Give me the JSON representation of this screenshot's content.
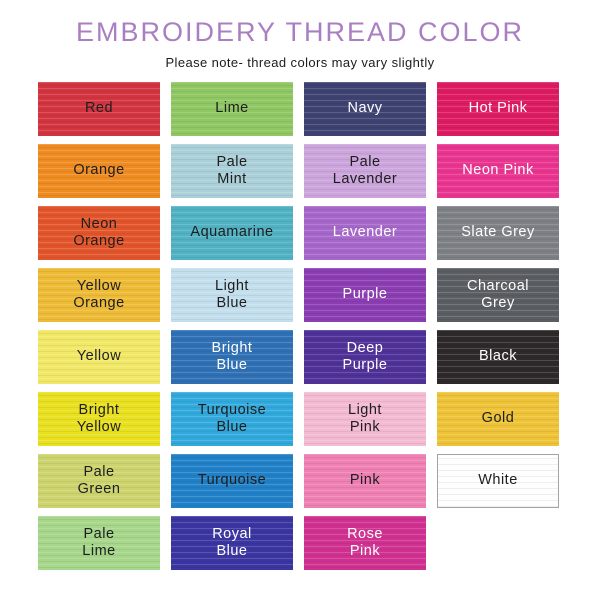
{
  "chart_data": {
    "type": "table",
    "title": "EMBROIDERY THREAD COLOR",
    "note": "Please note- thread colors may vary slightly",
    "title_color": "#a97fc1",
    "grid_columns": 4,
    "swatches": [
      {
        "label": "Red",
        "color": "#d23440",
        "text": "dark"
      },
      {
        "label": "Lime",
        "color": "#8fc763",
        "text": "dark"
      },
      {
        "label": "Navy",
        "color": "#3d4271",
        "text": "light"
      },
      {
        "label": "Hot Pink",
        "color": "#dd1b62",
        "text": "light"
      },
      {
        "label": "Orange",
        "color": "#ee8b21",
        "text": "dark"
      },
      {
        "label": "Pale\nMint",
        "color": "#abd0d9",
        "text": "dark"
      },
      {
        "label": "Pale\nLavender",
        "color": "#cba5dc",
        "text": "dark"
      },
      {
        "label": "Neon Pink",
        "color": "#e93490",
        "text": "light"
      },
      {
        "label": "Neon\nOrange",
        "color": "#e2552b",
        "text": "dark"
      },
      {
        "label": "Aquamarine",
        "color": "#51b2c3",
        "text": "dark"
      },
      {
        "label": "Lavender",
        "color": "#a667ca",
        "text": "light"
      },
      {
        "label": "Slate Grey",
        "color": "#7d8085",
        "text": "light"
      },
      {
        "label": "Yellow\nOrange",
        "color": "#edbb36",
        "text": "dark"
      },
      {
        "label": "Light\nBlue",
        "color": "#c3dfee",
        "text": "dark"
      },
      {
        "label": "Purple",
        "color": "#8b3eb2",
        "text": "light"
      },
      {
        "label": "Charcoal\nGrey",
        "color": "#5a5e63",
        "text": "light"
      },
      {
        "label": "Yellow",
        "color": "#f2e867",
        "text": "dark"
      },
      {
        "label": "Bright\nBlue",
        "color": "#2f70b5",
        "text": "light"
      },
      {
        "label": "Deep\nPurple",
        "color": "#4f3198",
        "text": "light"
      },
      {
        "label": "Black",
        "color": "#2d292b",
        "text": "light"
      },
      {
        "label": "Bright\nYellow",
        "color": "#e9e120",
        "text": "dark"
      },
      {
        "label": "Turquoise\nBlue",
        "color": "#32a9dc",
        "text": "dark"
      },
      {
        "label": "Light\nPink",
        "color": "#f3bad2",
        "text": "dark"
      },
      {
        "label": "Gold",
        "color": "#eec338",
        "text": "dark"
      },
      {
        "label": "Pale\nGreen",
        "color": "#cdd46e",
        "text": "dark"
      },
      {
        "label": "Turquoise",
        "color": "#2181c8",
        "text": "dark"
      },
      {
        "label": "Pink",
        "color": "#ee80b3",
        "text": "dark"
      },
      {
        "label": "White",
        "color": "#fefefe",
        "text": "dark",
        "border": "#a3a3a3"
      },
      {
        "label": "Pale\nLime",
        "color": "#a6d78a",
        "text": "dark"
      },
      {
        "label": "Royal\nBlue",
        "color": "#3a35a0",
        "text": "light"
      },
      {
        "label": "Rose\nPink",
        "color": "#d03190",
        "text": "light"
      }
    ]
  }
}
